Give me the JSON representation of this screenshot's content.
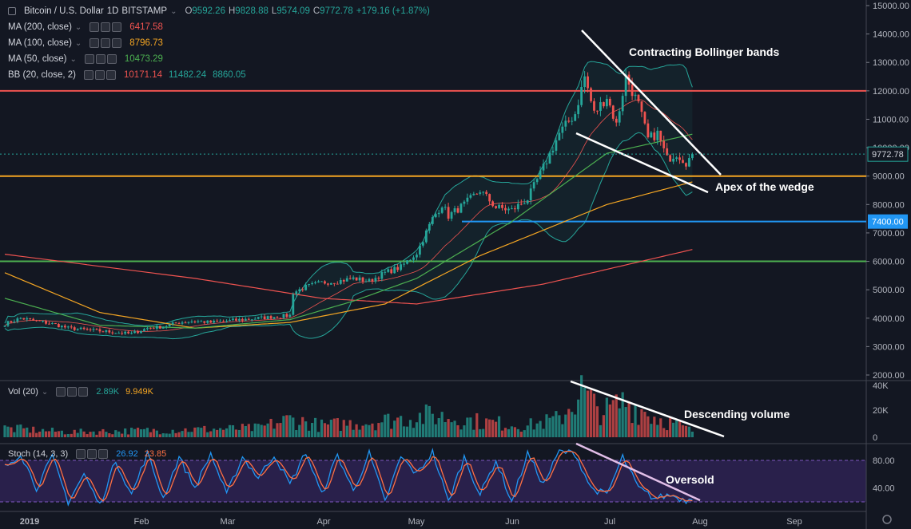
{
  "symbol": {
    "title": "Bitcoin / U.S. Dollar",
    "interval": "1D",
    "exchange": "BITSTAMP",
    "o_key": "O",
    "o": "9592.26",
    "h_key": "H",
    "h": "9828.88",
    "l_key": "L",
    "l": "9574.09",
    "c_key": "C",
    "c": "9772.78",
    "change": "+179.16 (+1.87%)"
  },
  "indicators": [
    {
      "label": "MA (200, close)",
      "values": [
        "6417.58"
      ],
      "color": "#ef5350"
    },
    {
      "label": "MA (100, close)",
      "values": [
        "8796.73"
      ],
      "color": "#f5a623"
    },
    {
      "label": "MA (50, close)",
      "values": [
        "10473.29"
      ],
      "color": "#4caf50"
    },
    {
      "label": "BB (20, close, 2)",
      "values": [
        "10171.14",
        "11482.24",
        "8860.05"
      ],
      "color": "#26a69a",
      "first_color": "#ef5350"
    }
  ],
  "volume_pane": {
    "label": "Vol (20)",
    "v1": "2.89K",
    "v2": "9.949K",
    "v1_color": "#26a69a",
    "v2_color": "#f5a623"
  },
  "stoch_pane": {
    "label": "Stoch (14, 3, 3)",
    "k": "26.92",
    "d": "23.85",
    "k_color": "#2196f3",
    "d_color": "#ff7043"
  },
  "chart_data": {
    "type": "candlestick",
    "price_axis": {
      "ticks": [
        "15000.00",
        "14000.00",
        "13000.00",
        "12000.00",
        "11000.00",
        "10000.00",
        "9000.00",
        "8000.00",
        "7000.00",
        "6000.00",
        "5000.00",
        "4000.00",
        "3000.00",
        "2000.00"
      ],
      "ylim": [
        2000,
        15000
      ]
    },
    "volume_axis": {
      "ticks": [
        "40K",
        "20K",
        "0"
      ],
      "ylim": [
        0,
        40000
      ]
    },
    "stoch_axis": {
      "ticks": [
        "80.00",
        "40.00"
      ],
      "ylim": [
        0,
        100
      ]
    },
    "x_ticks": [
      "2019",
      "Feb",
      "Mar",
      "Apr",
      "May",
      "Jun",
      "Jul",
      "Aug",
      "Sep"
    ],
    "last_price": {
      "value": 9772.78,
      "label": "9772.78",
      "color": "#26a69a"
    },
    "horizontal_lines": [
      {
        "value": 12000,
        "color": "#ef5350"
      },
      {
        "value": 9000,
        "color": "#f5a623"
      },
      {
        "value": 7400,
        "color": "#2196f3",
        "label": "7400.00"
      },
      {
        "value": 6000,
        "color": "#4caf50"
      }
    ],
    "annotations": [
      {
        "text": "Contracting Bollinger bands"
      },
      {
        "text": "Apex of the wedge"
      },
      {
        "text": "Descending volume"
      },
      {
        "text": "Oversold"
      }
    ],
    "close_anchors": [
      [
        0,
        3800
      ],
      [
        5,
        4000
      ],
      [
        10,
        3900
      ],
      [
        15,
        3800
      ],
      [
        20,
        3650
      ],
      [
        25,
        3600
      ],
      [
        30,
        3550
      ],
      [
        35,
        3500
      ],
      [
        40,
        3450
      ],
      [
        45,
        3650
      ],
      [
        50,
        3700
      ],
      [
        55,
        3850
      ],
      [
        60,
        3900
      ],
      [
        65,
        3850
      ],
      [
        70,
        3900
      ],
      [
        75,
        3950
      ],
      [
        80,
        4000
      ],
      [
        85,
        4050
      ],
      [
        90,
        4100
      ],
      [
        91,
        4900
      ],
      [
        95,
        5100
      ],
      [
        100,
        5250
      ],
      [
        105,
        5300
      ],
      [
        110,
        5400
      ],
      [
        115,
        5300
      ],
      [
        120,
        5600
      ],
      [
        125,
        5800
      ],
      [
        130,
        6300
      ],
      [
        135,
        7500
      ],
      [
        138,
        8000
      ],
      [
        140,
        7600
      ],
      [
        145,
        8000
      ],
      [
        150,
        8500
      ],
      [
        155,
        7900
      ],
      [
        160,
        7800
      ],
      [
        165,
        8200
      ],
      [
        170,
        9300
      ],
      [
        175,
        10500
      ],
      [
        180,
        11200
      ],
      [
        183,
        12500
      ],
      [
        186,
        11200
      ],
      [
        190,
        11800
      ],
      [
        193,
        10800
      ],
      [
        196,
        12500
      ],
      [
        200,
        11500
      ],
      [
        203,
        10300
      ],
      [
        206,
        10500
      ],
      [
        209,
        9600
      ],
      [
        212,
        9800
      ],
      [
        215,
        9500
      ],
      [
        217,
        9700
      ]
    ],
    "volume_anchors": [
      [
        0,
        7000
      ],
      [
        20,
        4000
      ],
      [
        40,
        5000
      ],
      [
        60,
        6000
      ],
      [
        80,
        7000
      ],
      [
        90,
        14000
      ],
      [
        100,
        9000
      ],
      [
        120,
        13000
      ],
      [
        135,
        17000
      ],
      [
        150,
        12000
      ],
      [
        165,
        9000
      ],
      [
        175,
        14000
      ],
      [
        182,
        36000
      ],
      [
        186,
        24000
      ],
      [
        190,
        20000
      ],
      [
        196,
        28000
      ],
      [
        205,
        16000
      ],
      [
        217,
        5000
      ]
    ],
    "stoch_anchors": [
      [
        0,
        70
      ],
      [
        5,
        90
      ],
      [
        10,
        40
      ],
      [
        15,
        85
      ],
      [
        20,
        20
      ],
      [
        25,
        60
      ],
      [
        30,
        15
      ],
      [
        35,
        80
      ],
      [
        40,
        30
      ],
      [
        45,
        90
      ],
      [
        50,
        25
      ],
      [
        55,
        85
      ],
      [
        60,
        40
      ],
      [
        65,
        90
      ],
      [
        70,
        30
      ],
      [
        75,
        85
      ],
      [
        80,
        55
      ],
      [
        85,
        88
      ],
      [
        90,
        45
      ],
      [
        95,
        92
      ],
      [
        100,
        30
      ],
      [
        105,
        88
      ],
      [
        110,
        35
      ],
      [
        115,
        90
      ],
      [
        120,
        20
      ],
      [
        125,
        85
      ],
      [
        130,
        60
      ],
      [
        135,
        92
      ],
      [
        140,
        20
      ],
      [
        145,
        85
      ],
      [
        150,
        30
      ],
      [
        155,
        80
      ],
      [
        160,
        20
      ],
      [
        165,
        90
      ],
      [
        170,
        45
      ],
      [
        175,
        93
      ],
      [
        180,
        90
      ],
      [
        185,
        40
      ],
      [
        190,
        30
      ],
      [
        195,
        85
      ],
      [
        200,
        40
      ],
      [
        205,
        25
      ],
      [
        210,
        30
      ],
      [
        215,
        22
      ],
      [
        217,
        27
      ]
    ]
  }
}
